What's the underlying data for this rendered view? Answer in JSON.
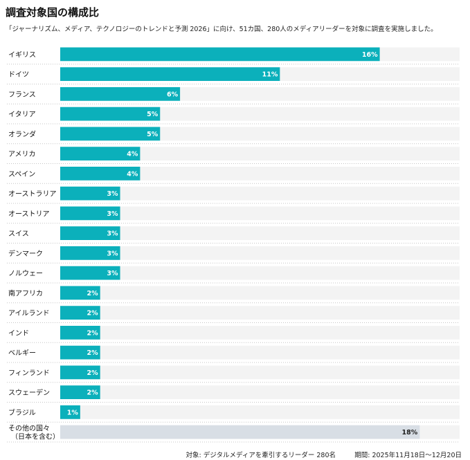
{
  "title": "調査対象国の構成比",
  "subtitle": "「ジャーナリズム、メディア、テクノロジーのトレンドと予測 2026」に向け、51カ国、280人のメディアリーダーを対象に調査を実施しました。",
  "footer": {
    "note": "対象: デジタルメディアを牽引するリーダー 280名",
    "period": "期間: 2025年11月18日〜12月20日"
  },
  "colors": {
    "bar": "#0bb0bb",
    "other_bar": "#d8dee5",
    "track": "#f3f3f3",
    "label_on_bar": "#ffffff",
    "label_on_other": "#222222"
  },
  "chart_data": {
    "type": "bar",
    "orientation": "horizontal",
    "unit": "%",
    "xlim": [
      0,
      20
    ],
    "categories": [
      "イギリス",
      "ドイツ",
      "フランス",
      "イタリア",
      "オランダ",
      "アメリカ",
      "スペイン",
      "オーストラリア",
      "オーストリア",
      "スイス",
      "デンマーク",
      "ノルウェー",
      "南アフリカ",
      "アイルランド",
      "インド",
      "ベルギー",
      "フィンランド",
      "スウェーデン",
      "ブラジル",
      "その他の国々\n（日本を含む）"
    ],
    "values": [
      16,
      11,
      6,
      5,
      5,
      4,
      4,
      3,
      3,
      3,
      3,
      3,
      2,
      2,
      2,
      2,
      2,
      2,
      1,
      18
    ],
    "value_labels": [
      "16%",
      "11%",
      "6%",
      "5%",
      "5%",
      "4%",
      "4%",
      "3%",
      "3%",
      "3%",
      "3%",
      "3%",
      "2%",
      "2%",
      "2%",
      "2%",
      "2%",
      "2%",
      "1%",
      "18%"
    ]
  }
}
